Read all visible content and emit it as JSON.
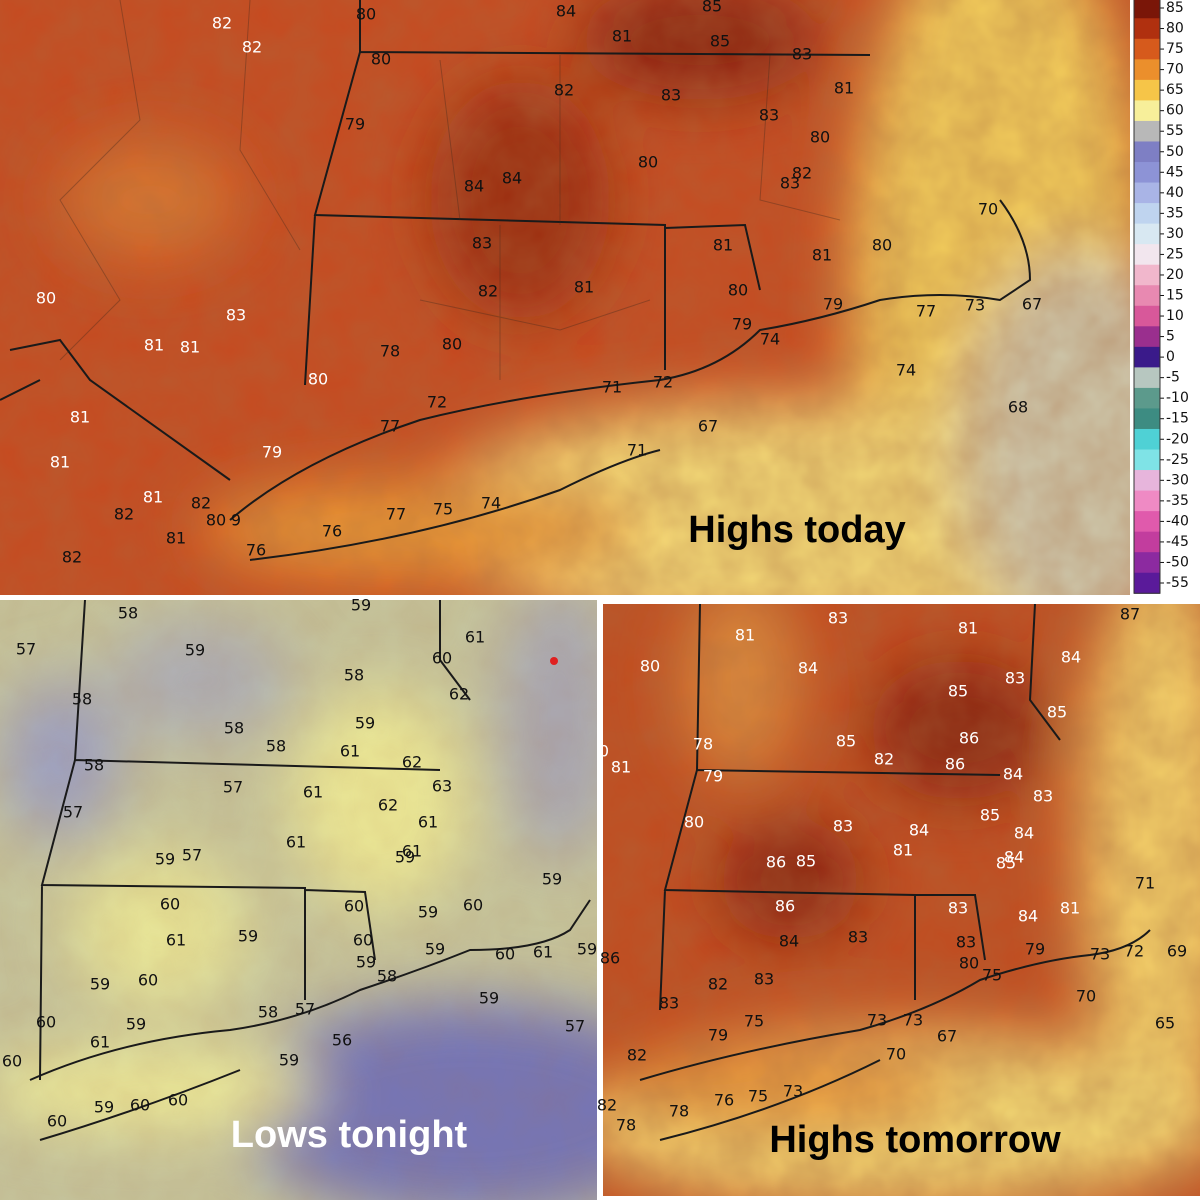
{
  "panels": [
    {
      "title": "Highs today",
      "labels": [
        82,
        80,
        84,
        85,
        82,
        81,
        85,
        83,
        80,
        82,
        83,
        81,
        79,
        83,
        80,
        80,
        82,
        83,
        84,
        84,
        70,
        83,
        81,
        80,
        81,
        80,
        81,
        82,
        80,
        83,
        79,
        77,
        73,
        67,
        79,
        81,
        81,
        74,
        78,
        80,
        80,
        74,
        71,
        72,
        72,
        81,
        68,
        77,
        67,
        71,
        79,
        81,
        81,
        82,
        82,
        80,
        9,
        77,
        75,
        74,
        76,
        81,
        76,
        82
      ]
    },
    {
      "title": "Lows tonight",
      "labels": [
        58,
        59,
        61,
        57,
        59,
        60,
        58,
        62,
        59,
        58,
        58,
        61,
        58,
        58,
        62,
        63,
        57,
        61,
        62,
        57,
        61,
        61,
        59,
        61,
        59,
        57,
        59,
        60,
        60,
        59,
        60,
        61,
        59,
        60,
        59,
        58,
        59,
        60,
        61,
        59,
        60,
        59,
        59,
        57,
        60,
        58,
        57,
        59,
        61,
        56,
        59,
        60,
        59,
        60,
        60,
        60
      ]
    },
    {
      "title": "Highs tomorrow",
      "labels": [
        81,
        83,
        81,
        87,
        80,
        84,
        84,
        85,
        83,
        85,
        78,
        85,
        82,
        86,
        86,
        0,
        81,
        79,
        84,
        83,
        84,
        83,
        80,
        85,
        84,
        81,
        85,
        84,
        86,
        85,
        71,
        86,
        83,
        84,
        81,
        84,
        83,
        83,
        79,
        73,
        72,
        69,
        86,
        80,
        75,
        82,
        83,
        83,
        70,
        73,
        73,
        75,
        79,
        67,
        65,
        82,
        70,
        73,
        75,
        76,
        78,
        82,
        78
      ]
    }
  ],
  "colorbar": {
    "ticks": [
      85,
      80,
      75,
      70,
      65,
      60,
      55,
      50,
      45,
      40,
      35,
      30,
      25,
      20,
      15,
      10,
      5,
      0,
      -5,
      -10,
      -15,
      -20,
      -25,
      -30,
      -35,
      -40,
      -45,
      -50,
      -55
    ],
    "colors": [
      "#7a1608",
      "#b0300f",
      "#d65a1c",
      "#eb8f2c",
      "#f6c548",
      "#f7ef9a",
      "#b8b8b8",
      "#7e7fc4",
      "#8d93d6",
      "#a9b4e6",
      "#bfd4ef",
      "#d8e8f2",
      "#f2e6ee",
      "#f1b7cc",
      "#e889b1",
      "#d8589a",
      "#9a2f8e",
      "#3a1a8a",
      "#b7c7c0",
      "#5c9a8c",
      "#3d8c82",
      "#4fd1d5",
      "#7fe3e6",
      "#e7b5dc",
      "#ef8ac4",
      "#e05aac",
      "#c23d9e",
      "#8c2aa0",
      "#5a1a9a"
    ]
  }
}
